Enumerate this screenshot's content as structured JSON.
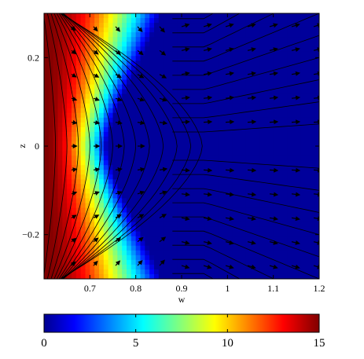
{
  "chart_data": {
    "type": "heatmap",
    "title": "",
    "xlabel": "w",
    "ylabel": "z",
    "xlim": [
      0.6,
      1.2
    ],
    "ylim": [
      -0.3,
      0.3
    ],
    "xticks": [
      0.7,
      0.8,
      0.9,
      1.0,
      1.1,
      1.2
    ],
    "xtick_labels": [
      "0.7",
      "0.8",
      "0.9",
      "1",
      "1.1",
      "1.2"
    ],
    "yticks": [
      -0.2,
      0,
      0.2
    ],
    "ytick_labels": [
      "−0.2",
      "0",
      "0.2"
    ],
    "colorbar": {
      "range": [
        0,
        15
      ],
      "ticks": [
        0,
        5,
        10,
        15
      ],
      "tick_labels": [
        "0",
        "5",
        "10",
        "15"
      ],
      "colormap": "jet"
    },
    "overlays": [
      "streamlines",
      "velocity-arrows"
    ],
    "field_description_points": [
      {
        "w": 0.6,
        "z": 0.0,
        "value": 15
      },
      {
        "w": 0.7,
        "z": 0.0,
        "value": 8
      },
      {
        "w": 0.8,
        "z": 0.0,
        "value": 3.5
      },
      {
        "w": 0.9,
        "z": 0.0,
        "value": 0.5
      },
      {
        "w": 1.0,
        "z": 0.0,
        "value": 0.5
      },
      {
        "w": 0.7,
        "z": 0.2,
        "value": 13
      },
      {
        "w": 0.8,
        "z": 0.2,
        "value": 8
      },
      {
        "w": 1.0,
        "z": 0.2,
        "value": 2
      },
      {
        "w": 1.1,
        "z": 0.2,
        "value": 1
      }
    ]
  }
}
